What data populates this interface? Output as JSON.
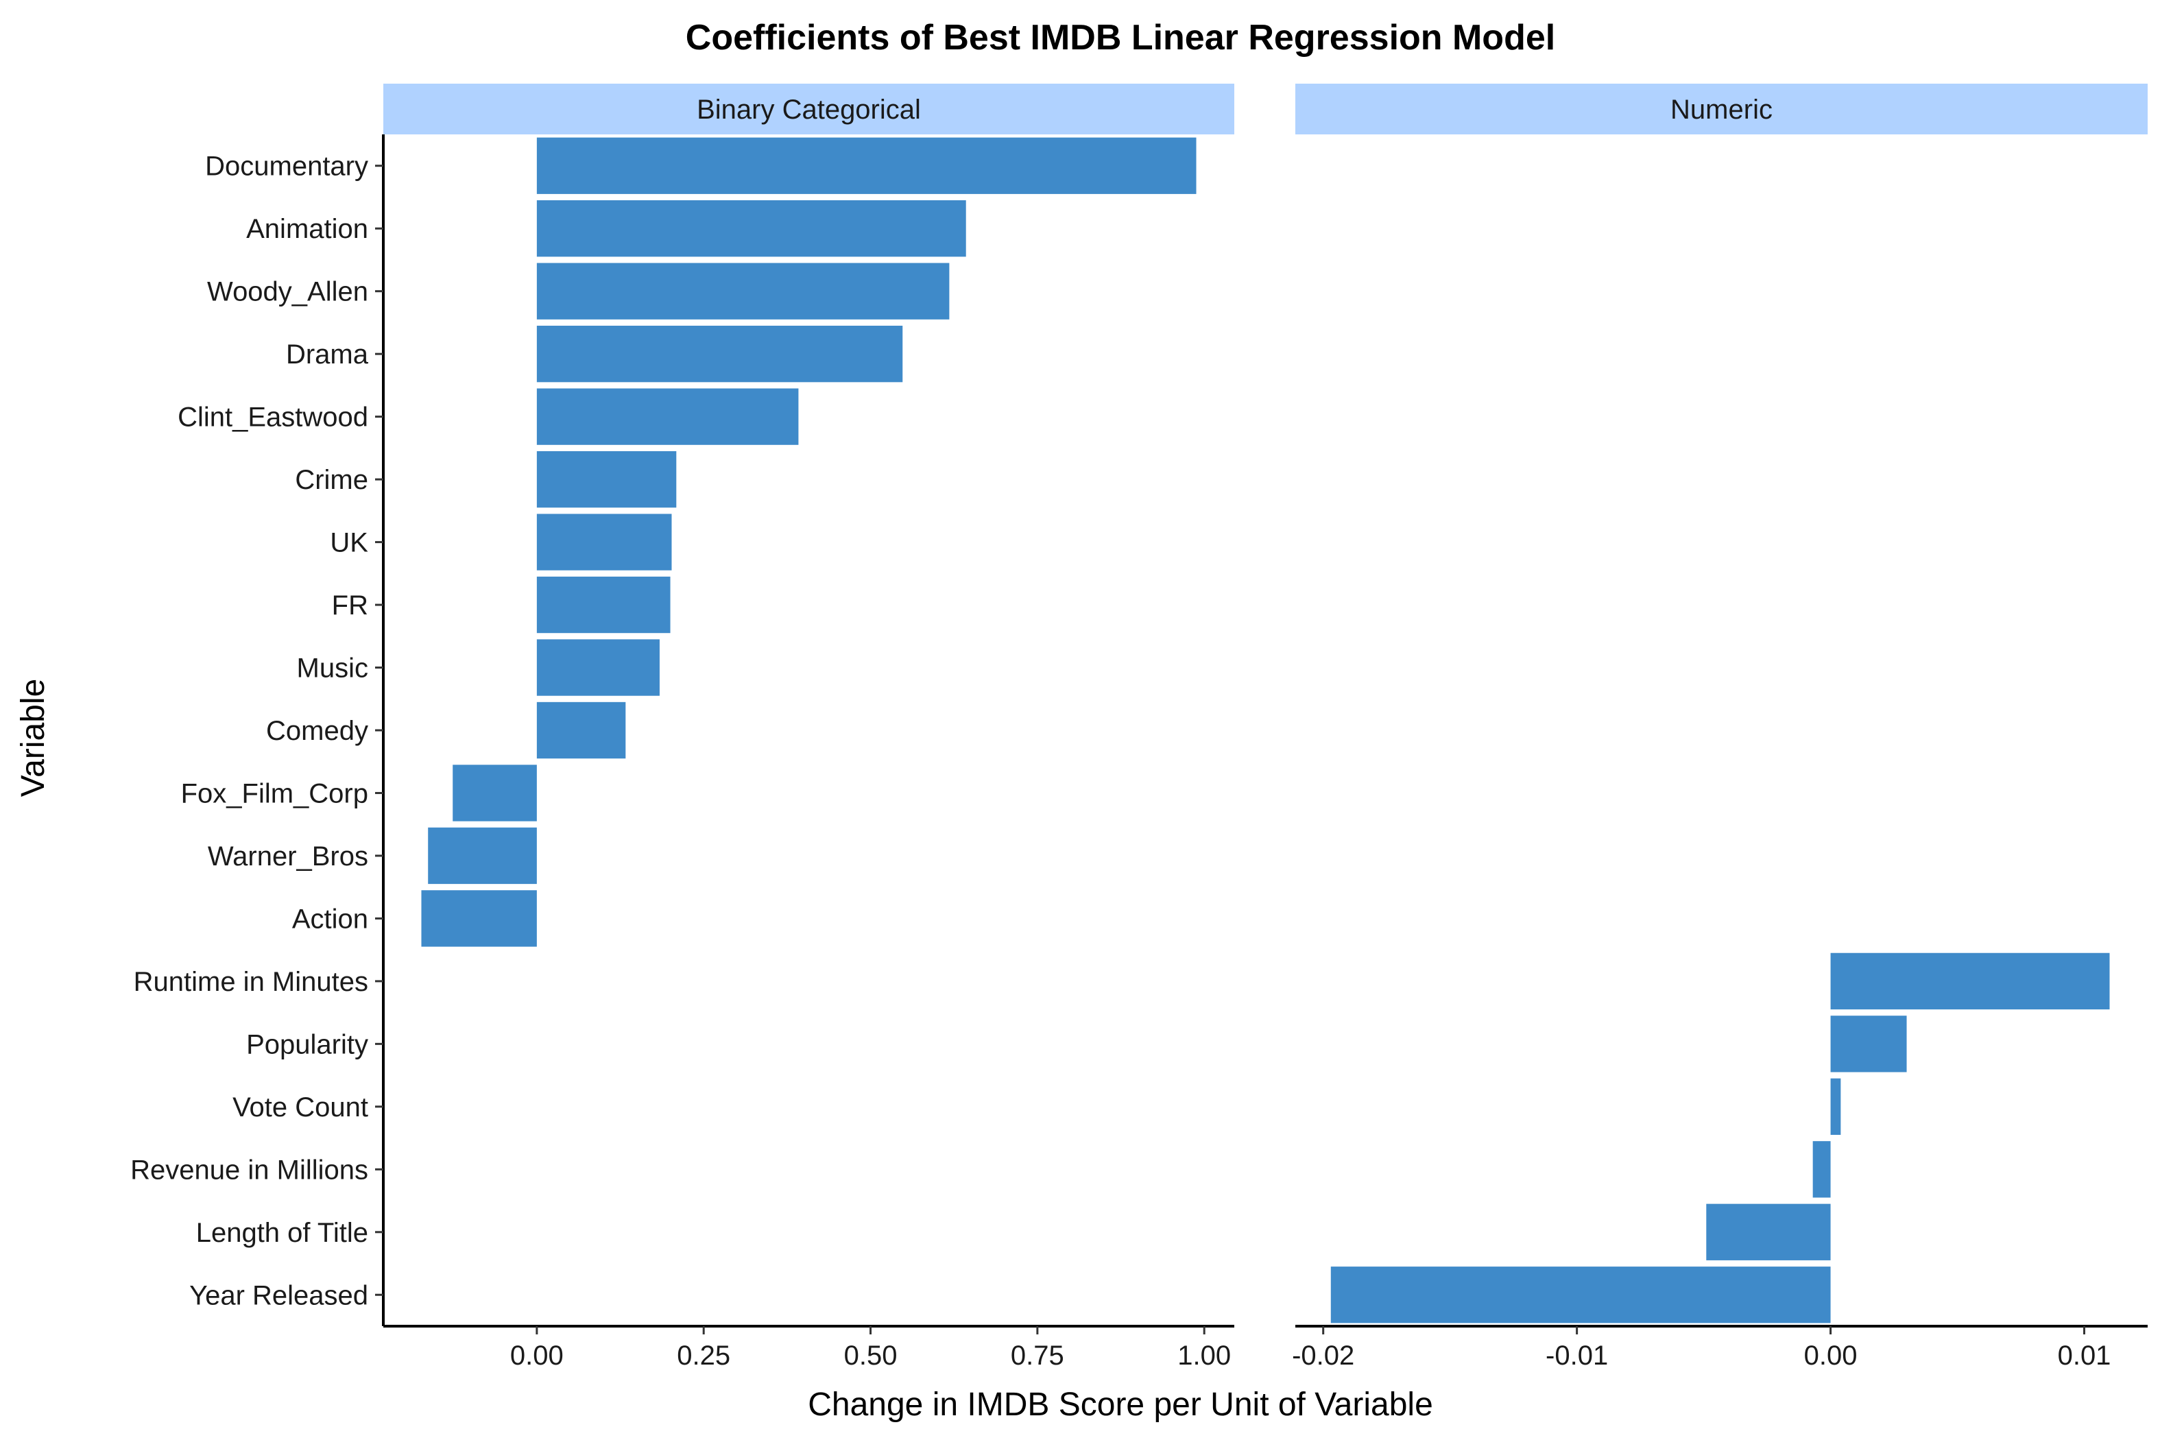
{
  "chart_data": {
    "type": "bar",
    "orientation": "horizontal",
    "title": "Coefficients of Best IMDB Linear Regression Model",
    "xlabel": "Change in IMDB Score per Unit of Variable",
    "ylabel": "Variable",
    "bar_color": "#3f8ac9",
    "strip_color": "#b0d2ff",
    "categories": [
      "Documentary",
      "Animation",
      "Woody_Allen",
      "Drama",
      "Clint_Eastwood",
      "Crime",
      "UK",
      "FR",
      "Music",
      "Comedy",
      "Fox_Film_Corp",
      "Warner_Bros",
      "Action",
      "Runtime in Minutes",
      "Popularity",
      "Vote Count",
      "Revenue in Millions",
      "Length of Title",
      "Year Released"
    ],
    "panels": [
      {
        "name": "Binary Categorical",
        "xlim": [
          -0.23,
          1.045
        ],
        "ticks": [
          0,
          0.25,
          0.5,
          0.75,
          1.0
        ],
        "tick_labels": [
          "0.00",
          "0.25",
          "0.50",
          "0.75",
          "1.00"
        ],
        "bars": [
          {
            "category": "Documentary",
            "value": 0.988
          },
          {
            "category": "Animation",
            "value": 0.643
          },
          {
            "category": "Woody_Allen",
            "value": 0.618
          },
          {
            "category": "Drama",
            "value": 0.548
          },
          {
            "category": "Clint_Eastwood",
            "value": 0.392
          },
          {
            "category": "Crime",
            "value": 0.209
          },
          {
            "category": "UK",
            "value": 0.202
          },
          {
            "category": "FR",
            "value": 0.2
          },
          {
            "category": "Music",
            "value": 0.184
          },
          {
            "category": "Comedy",
            "value": 0.133
          },
          {
            "category": "Fox_Film_Corp",
            "value": -0.126
          },
          {
            "category": "Warner_Bros",
            "value": -0.163
          },
          {
            "category": "Action",
            "value": -0.173
          }
        ]
      },
      {
        "name": "Numeric",
        "xlim": [
          -0.0211,
          0.0125
        ],
        "ticks": [
          -0.02,
          -0.01,
          0.0,
          0.01
        ],
        "tick_labels": [
          "-0.02",
          "-0.01",
          "0.00",
          "0.01"
        ],
        "bars": [
          {
            "category": "Runtime in Minutes",
            "value": 0.011
          },
          {
            "category": "Popularity",
            "value": 0.003
          },
          {
            "category": "Vote Count",
            "value": 0.0004
          },
          {
            "category": "Revenue in Millions",
            "value": -0.0007
          },
          {
            "category": "Length of Title",
            "value": -0.0049
          },
          {
            "category": "Year Released",
            "value": -0.0197
          }
        ]
      }
    ]
  }
}
